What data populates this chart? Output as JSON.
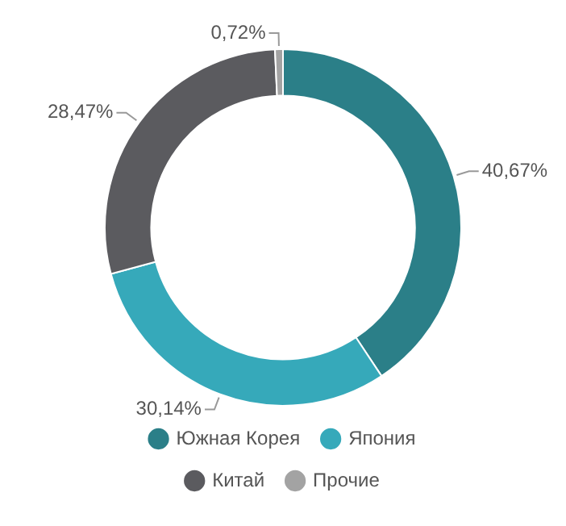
{
  "chart_data": {
    "type": "donut",
    "categories": [
      "Южная Корея",
      "Япония",
      "Китай",
      "Прочие"
    ],
    "values": [
      40.67,
      30.14,
      28.47,
      0.72
    ],
    "colors": [
      "#2b7f88",
      "#36a9ba",
      "#5b5b5f",
      "#a3a3a3"
    ],
    "value_labels": [
      "40,67%",
      "30,14%",
      "28,47%",
      "0,72%"
    ],
    "legend": "bottom"
  }
}
